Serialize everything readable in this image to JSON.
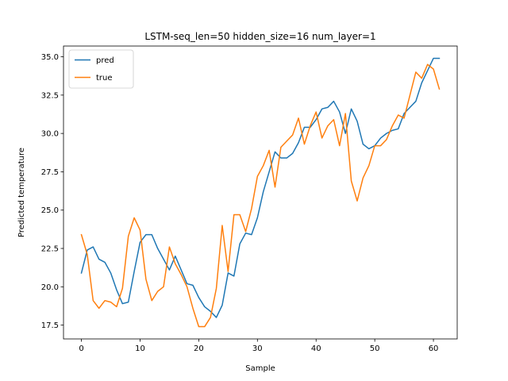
{
  "chart_data": {
    "type": "line",
    "title": "LSTM-seq_len=50 hidden_size=16 num_layer=1",
    "xlabel": "Sample",
    "ylabel": "Predicted temperature",
    "xlim": [
      -3.05,
      64.05
    ],
    "ylim": [
      16.6,
      35.7
    ],
    "xticks": [
      0,
      10,
      20,
      30,
      40,
      50,
      60
    ],
    "yticks": [
      17.5,
      20.0,
      22.5,
      25.0,
      27.5,
      30.0,
      32.5,
      35.0
    ],
    "xtick_labels": [
      "0",
      "10",
      "20",
      "30",
      "40",
      "50",
      "60"
    ],
    "ytick_labels": [
      "17.5",
      "20.0",
      "22.5",
      "25.0",
      "27.5",
      "30.0",
      "32.5",
      "35.0"
    ],
    "grid": false,
    "legend_position": "upper-left",
    "x": [
      0,
      1,
      2,
      3,
      4,
      5,
      6,
      7,
      8,
      9,
      10,
      11,
      12,
      13,
      14,
      15,
      16,
      17,
      18,
      19,
      20,
      21,
      22,
      23,
      24,
      25,
      26,
      27,
      28,
      29,
      30,
      31,
      32,
      33,
      34,
      35,
      36,
      37,
      38,
      39,
      40,
      41,
      42,
      43,
      44,
      45,
      46,
      47,
      48,
      49,
      50,
      51,
      52,
      53,
      54,
      55,
      56,
      57,
      58,
      59,
      60,
      61
    ],
    "series": [
      {
        "name": "pred",
        "color": "#1f77b4",
        "values": [
          20.9,
          22.4,
          22.6,
          21.8,
          21.6,
          20.9,
          19.8,
          18.9,
          19.0,
          21.0,
          22.9,
          23.4,
          23.4,
          22.5,
          21.8,
          21.1,
          22.0,
          21.1,
          20.2,
          20.1,
          19.3,
          18.7,
          18.4,
          18.0,
          18.8,
          20.9,
          20.7,
          22.8,
          23.5,
          23.4,
          24.5,
          26.2,
          27.5,
          28.8,
          28.4,
          28.4,
          28.7,
          29.4,
          30.4,
          30.4,
          30.9,
          31.6,
          31.7,
          32.1,
          31.4,
          30.0,
          31.6,
          30.8,
          29.3,
          29.0,
          29.2,
          29.7,
          30.0,
          30.2,
          30.3,
          31.3,
          31.7,
          32.1,
          33.3,
          34.1,
          34.9,
          34.9
        ]
      },
      {
        "name": "true",
        "color": "#ff7f0e",
        "values": [
          23.4,
          22.1,
          19.1,
          18.6,
          19.1,
          19.0,
          18.7,
          19.9,
          23.3,
          24.5,
          23.7,
          20.5,
          19.1,
          19.7,
          20.0,
          22.6,
          21.5,
          20.8,
          20.0,
          18.6,
          17.4,
          17.4,
          18.0,
          19.9,
          24.0,
          21.0,
          24.7,
          24.7,
          23.6,
          25.1,
          27.2,
          27.9,
          28.9,
          26.5,
          29.1,
          29.5,
          29.9,
          31.0,
          29.3,
          30.5,
          31.4,
          29.7,
          30.5,
          30.9,
          29.2,
          31.3,
          26.9,
          25.6,
          27.1,
          27.9,
          29.2,
          29.2,
          29.6,
          30.5,
          31.2,
          31.0,
          32.5,
          34.0,
          33.6,
          34.5,
          34.2,
          32.9
        ]
      }
    ]
  }
}
